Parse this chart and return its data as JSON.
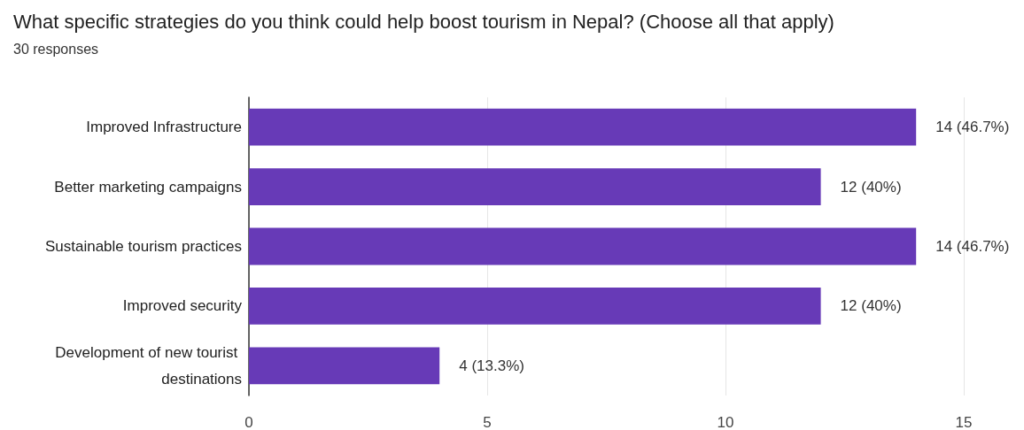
{
  "chart_data": {
    "type": "bar",
    "orientation": "horizontal",
    "title": "What specific strategies do you think could help boost tourism in Nepal? (Choose all that apply)",
    "subtitle": "30 responses",
    "categories": [
      "Improved Infrastructure",
      "Better marketing campaigns",
      "Sustainable tourism practices",
      "Improved security",
      "Development of new tourist destinations"
    ],
    "values": [
      14,
      12,
      14,
      12,
      4
    ],
    "value_labels": [
      "14 (46.7%)",
      "12 (40%)",
      "14 (46.7%)",
      "12 (40%)",
      "4 (13.3%)"
    ],
    "color": "#673ab7",
    "xlim": [
      0,
      15
    ],
    "xticks": [
      0,
      5,
      10,
      15
    ],
    "grid": "x"
  }
}
